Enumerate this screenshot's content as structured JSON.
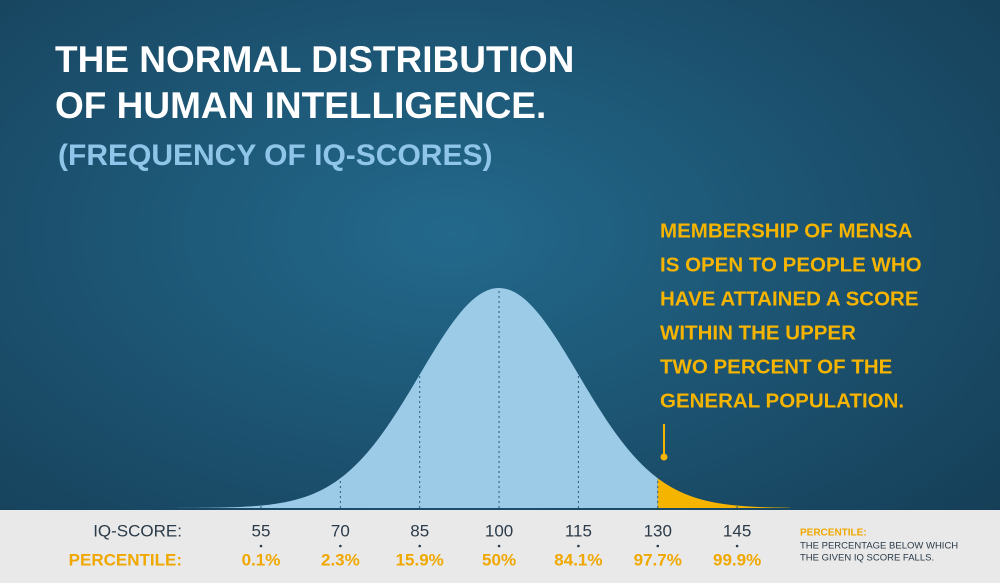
{
  "chart_data": {
    "type": "area",
    "title": [
      "THE NORMAL DISTRIBUTION",
      "OF HUMAN INTELLIGENCE."
    ],
    "subtitle": "(FREQUENCY OF IQ-SCORES)",
    "annotation": [
      "MEMBERSHIP OF MENSA",
      "IS OPEN TO PEOPLE WHO",
      "HAVE ATTAINED A SCORE",
      "WITHIN THE UPPER",
      "TWO PERCENT OF THE",
      "GENERAL POPULATION."
    ],
    "x_label": "IQ-SCORE:",
    "xticks": [
      55,
      70,
      85,
      100,
      115,
      130,
      145
    ],
    "xlim": [
      17,
      155
    ],
    "percentile_label": "PERCENTILE:",
    "percentiles": [
      0.1,
      2.3,
      15.9,
      50,
      84.1,
      97.7,
      99.9
    ],
    "percentile_labels": [
      "0.1%",
      "2.3%",
      "15.9%",
      "50%",
      "84.1%",
      "97.7%",
      "99.9%"
    ],
    "note": {
      "title": "PERCENTILE:",
      "lines": [
        "THE PERCENTAGE BELOW WHICH",
        "THE GIVEN IQ SCORE FALLS."
      ]
    },
    "color": "#9ccbe8",
    "highlight_color": "#f5b400",
    "highlight_from": 130
  }
}
